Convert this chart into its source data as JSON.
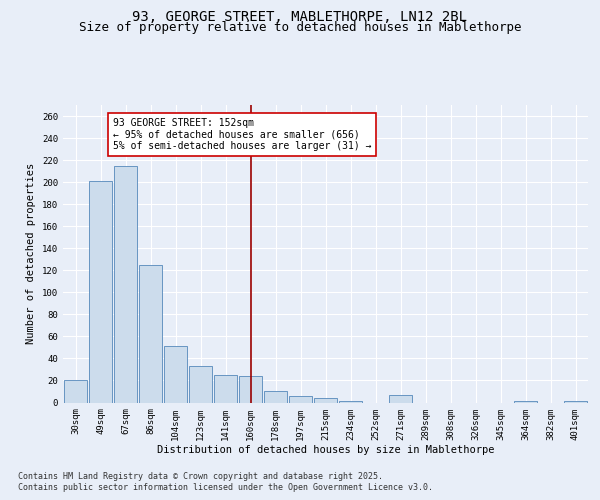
{
  "title_line1": "93, GEORGE STREET, MABLETHORPE, LN12 2BL",
  "title_line2": "Size of property relative to detached houses in Mablethorpe",
  "xlabel": "Distribution of detached houses by size in Mablethorpe",
  "ylabel": "Number of detached properties",
  "categories": [
    "30sqm",
    "49sqm",
    "67sqm",
    "86sqm",
    "104sqm",
    "123sqm",
    "141sqm",
    "160sqm",
    "178sqm",
    "197sqm",
    "215sqm",
    "234sqm",
    "252sqm",
    "271sqm",
    "289sqm",
    "308sqm",
    "326sqm",
    "345sqm",
    "364sqm",
    "382sqm",
    "401sqm"
  ],
  "values": [
    20,
    201,
    215,
    125,
    51,
    33,
    25,
    24,
    10,
    6,
    4,
    1,
    0,
    7,
    0,
    0,
    0,
    0,
    1,
    0,
    1
  ],
  "bar_color": "#ccdcec",
  "bar_edge_color": "#5588bb",
  "vline_x": 7.0,
  "vline_label": "93 GEORGE STREET: 152sqm",
  "annotation_line2": "← 95% of detached houses are smaller (656)",
  "annotation_line3": "5% of semi-detached houses are larger (31) →",
  "vline_color": "#990000",
  "annotation_box_color": "#ffffff",
  "annotation_box_edge": "#cc0000",
  "ylim": [
    0,
    270
  ],
  "yticks": [
    0,
    20,
    40,
    60,
    80,
    100,
    120,
    140,
    160,
    180,
    200,
    220,
    240,
    260
  ],
  "background_color": "#e8eef8",
  "plot_bg_color": "#e8eef8",
  "grid_color": "#ffffff",
  "footnote_line1": "Contains HM Land Registry data © Crown copyright and database right 2025.",
  "footnote_line2": "Contains public sector information licensed under the Open Government Licence v3.0.",
  "title_fontsize": 10,
  "subtitle_fontsize": 9,
  "axis_label_fontsize": 7.5,
  "tick_fontsize": 6.5,
  "annotation_fontsize": 7,
  "footnote_fontsize": 6
}
